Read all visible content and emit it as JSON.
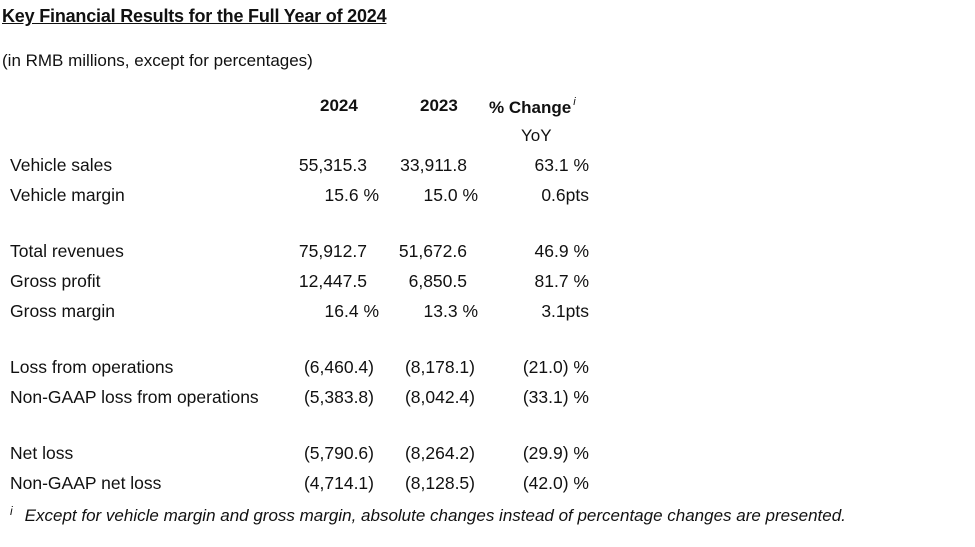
{
  "title": "Key Financial Results for the Full Year of 2024",
  "subtitle": "(in RMB millions, except for percentages)",
  "headers": {
    "col_2024": "2024",
    "col_2023": "2023",
    "col_change": "% Change",
    "col_change_note": "i",
    "col_change_sub": "YoY"
  },
  "rows": [
    {
      "label": "Vehicle sales",
      "v2024": "55,315.3",
      "v2023": "33,911.8",
      "change": "63.1 %"
    },
    {
      "label": "Vehicle margin",
      "v2024": "15.6 %",
      "v2023": "15.0 %",
      "change": "0.6pts"
    },
    {
      "label": "Total revenues",
      "v2024": "75,912.7",
      "v2023": "51,672.6",
      "change": "46.9 %"
    },
    {
      "label": "Gross profit",
      "v2024": "12,447.5",
      "v2023": "6,850.5",
      "change": "81.7 %"
    },
    {
      "label": "Gross margin",
      "v2024": "16.4 %",
      "v2023": "13.3 %",
      "change": "3.1pts"
    },
    {
      "label": "Loss from operations",
      "v2024": "(6,460.4)",
      "v2023": "(8,178.1)",
      "change": "(21.0) %"
    },
    {
      "label": "Non-GAAP loss from operations",
      "v2024": "(5,383.8)",
      "v2023": "(8,042.4)",
      "change": "(33.1) %"
    },
    {
      "label": "Net loss",
      "v2024": "(5,790.6)",
      "v2023": "(8,264.2)",
      "change": "(29.9) %"
    },
    {
      "label": "Non-GAAP net loss",
      "v2024": "(4,714.1)",
      "v2023": "(8,128.5)",
      "change": "(42.0) %"
    }
  ],
  "footnote": {
    "mark": "i",
    "text": "Except for vehicle margin and gross margin, absolute changes instead of percentage changes are presented."
  }
}
